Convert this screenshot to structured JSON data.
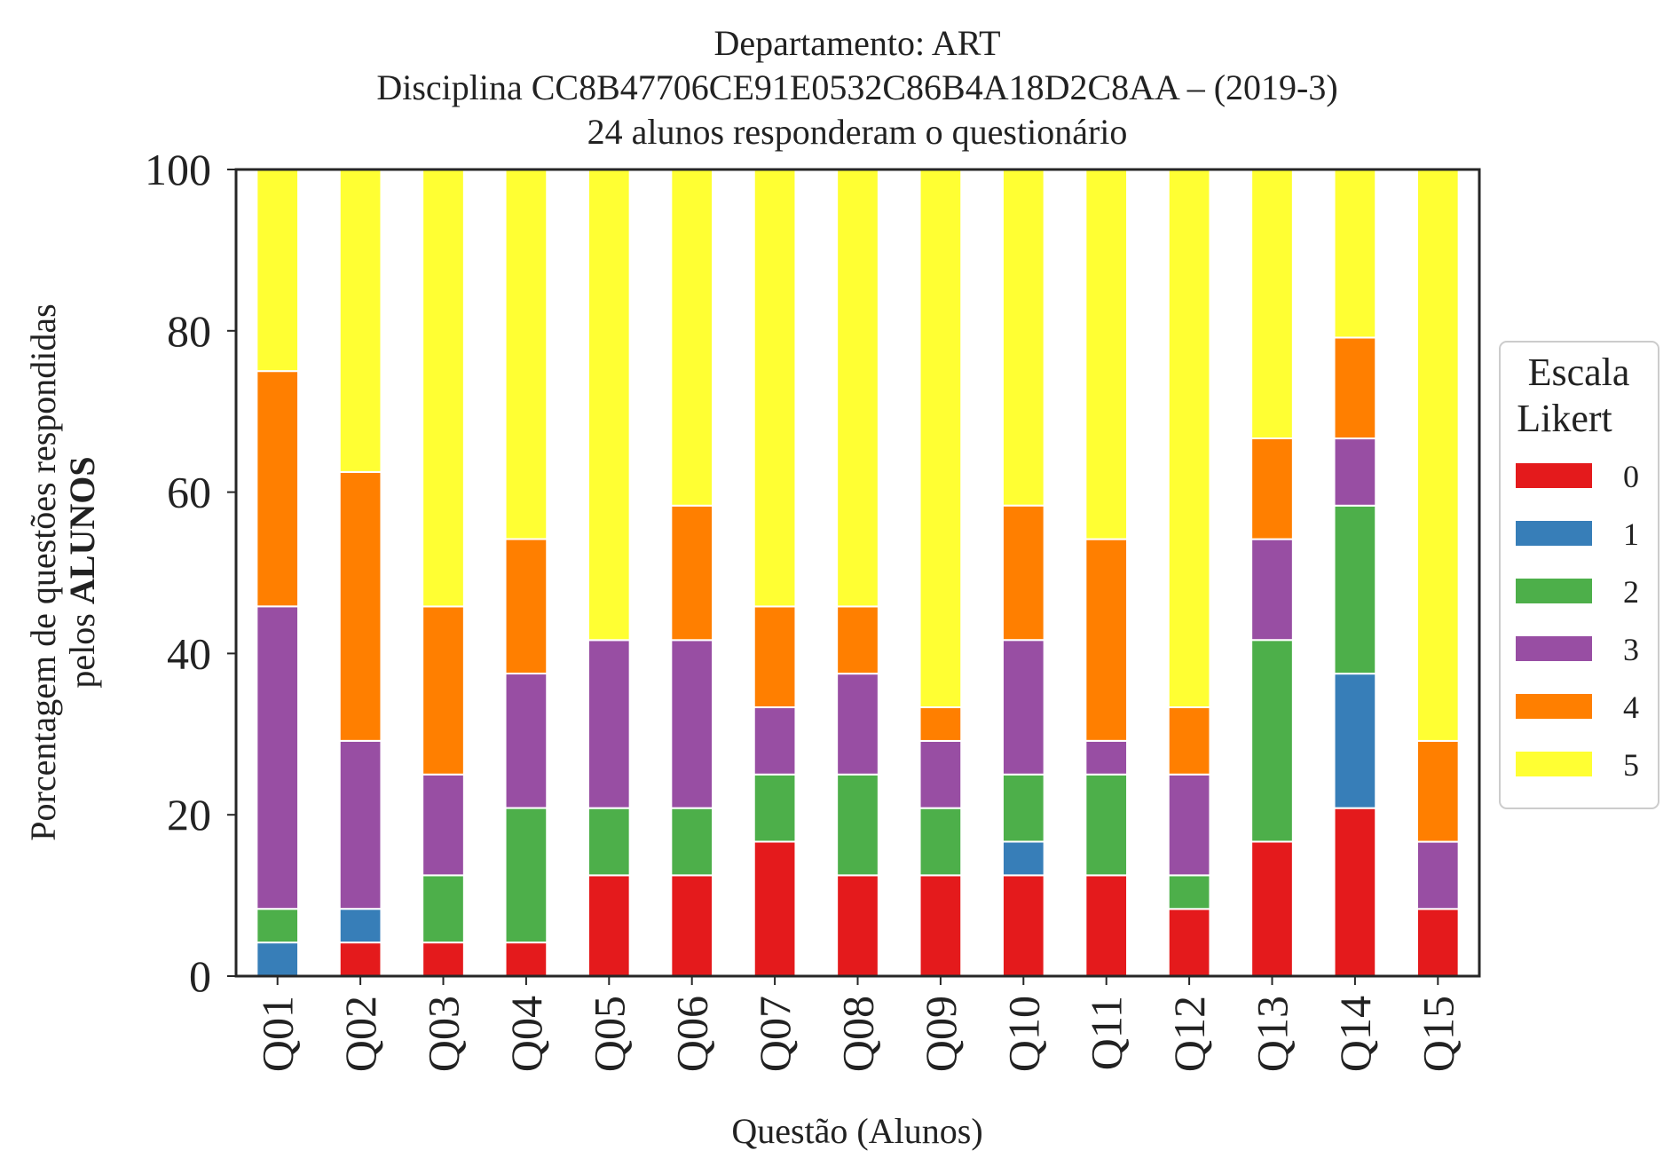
{
  "chart_data": {
    "type": "bar",
    "stacked": true,
    "title_lines": [
      "Departamento: ART",
      "Disciplina CC8B47706CE91E0532C86B4A18D2C8AA – (2019-3)",
      "24 alunos responderam o questionário"
    ],
    "xlabel": "Questão (Alunos)",
    "ylabel_lines": [
      "Porcentagem de questões respondidas",
      "pelos ALUNOS"
    ],
    "ylabel_prefix": "pelos ",
    "ylabel_bold": "ALUNOS",
    "ylim": [
      0,
      100
    ],
    "yticks": [
      "0",
      "20",
      "40",
      "60",
      "80",
      "100"
    ],
    "grid": false,
    "legend": {
      "title_lines": [
        "Escala",
        "Likert"
      ],
      "placement": "right-center"
    },
    "categories": [
      "Q01",
      "Q02",
      "Q03",
      "Q04",
      "Q05",
      "Q06",
      "Q07",
      "Q08",
      "Q09",
      "Q10",
      "Q11",
      "Q12",
      "Q13",
      "Q14",
      "Q15"
    ],
    "series": [
      {
        "name": "0",
        "color": "#e41a1c",
        "values": [
          0,
          4.17,
          4.17,
          4.17,
          12.5,
          12.5,
          16.67,
          12.5,
          12.5,
          12.5,
          12.5,
          8.33,
          16.67,
          20.83,
          8.33
        ]
      },
      {
        "name": "1",
        "color": "#377eb8",
        "values": [
          4.17,
          4.17,
          0,
          0,
          0,
          0,
          0,
          0,
          0,
          4.17,
          0,
          0,
          0,
          16.67,
          0
        ]
      },
      {
        "name": "2",
        "color": "#4daf4a",
        "values": [
          4.17,
          0,
          8.33,
          16.67,
          8.33,
          8.33,
          8.33,
          12.5,
          8.33,
          8.33,
          12.5,
          4.17,
          25.0,
          20.83,
          0
        ]
      },
      {
        "name": "3",
        "color": "#984ea3",
        "values": [
          37.5,
          20.83,
          12.5,
          16.67,
          20.83,
          20.83,
          8.33,
          12.5,
          8.33,
          16.67,
          4.17,
          12.5,
          12.5,
          8.33,
          8.33
        ]
      },
      {
        "name": "4",
        "color": "#ff7f00",
        "values": [
          29.17,
          33.33,
          20.83,
          16.67,
          0,
          16.67,
          12.5,
          8.33,
          4.17,
          16.67,
          25.0,
          8.33,
          12.5,
          12.5,
          12.5
        ]
      },
      {
        "name": "5",
        "color": "#ffff33",
        "values": [
          25.0,
          37.5,
          54.17,
          45.83,
          58.33,
          41.67,
          54.17,
          54.17,
          66.67,
          41.67,
          45.83,
          66.67,
          33.33,
          20.83,
          70.83
        ]
      }
    ]
  }
}
